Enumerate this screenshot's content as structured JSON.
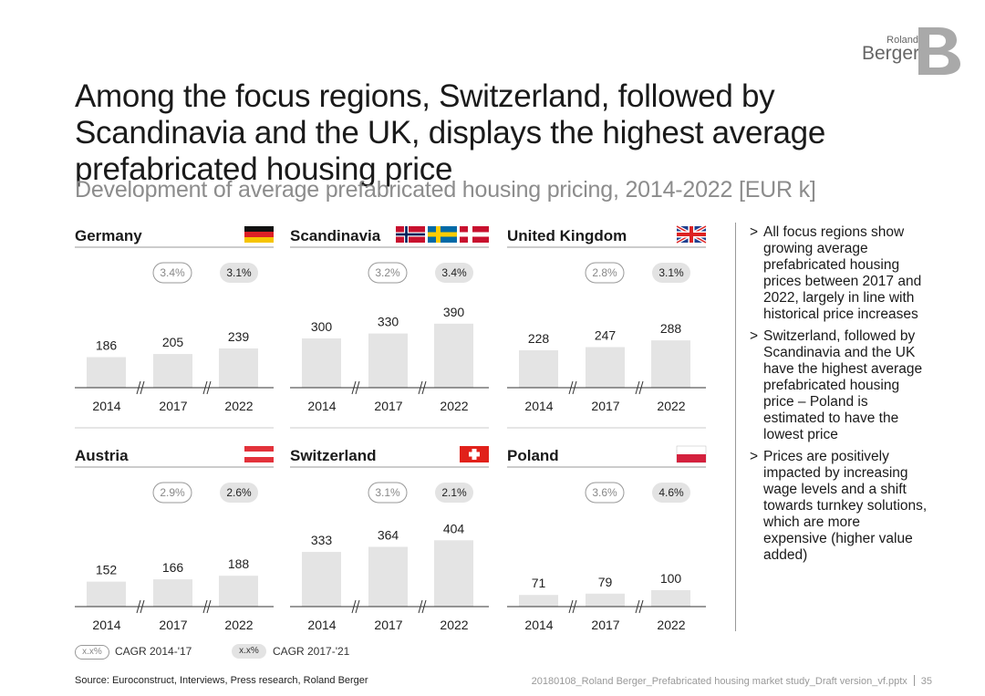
{
  "header": {
    "logo_line1": "Roland",
    "logo_line2": "Berger",
    "title": "Among the focus regions, Switzerland, followed by Scandinavia and the UK, displays the highest average prefabricated housing price",
    "subtitle": "Development of average prefabricated housing pricing, 2014-2022 [EUR k]"
  },
  "colors": {
    "bar": "#e4e4e4",
    "pill_fill": "#e3e3e3",
    "pill_border": "#999999",
    "flag_red": "#e3323b",
    "text": "#1a1a1a",
    "muted": "#8c8c8c"
  },
  "chart_data": [
    {
      "type": "bar",
      "title": "Germany",
      "flag": "germany-flag",
      "categories": [
        "2014",
        "2017",
        "2022"
      ],
      "values": [
        186,
        205,
        239
      ],
      "labels": [
        "186",
        "205",
        "239"
      ],
      "cagr_14_17": "3.4%",
      "cagr_17_21": "3.1%",
      "ylim": [
        0,
        500
      ]
    },
    {
      "type": "bar",
      "title": "Scandinavia",
      "flag": "scandinavia-flags",
      "categories": [
        "2014",
        "2017",
        "2022"
      ],
      "values": [
        300,
        330,
        390
      ],
      "labels": [
        "300",
        "330",
        "390"
      ],
      "cagr_14_17": "3.2%",
      "cagr_17_21": "3.4%",
      "ylim": [
        0,
        500
      ]
    },
    {
      "type": "bar",
      "title": "United Kingdom",
      "flag": "uk-flag",
      "categories": [
        "2014",
        "2017",
        "2022"
      ],
      "values": [
        228,
        247,
        288
      ],
      "labels": [
        "228",
        "247",
        "288"
      ],
      "cagr_14_17": "2.8%",
      "cagr_17_21": "3.1%",
      "ylim": [
        0,
        500
      ]
    },
    {
      "type": "bar",
      "title": "Austria",
      "flag": "austria-flag",
      "categories": [
        "2014",
        "2017",
        "2022"
      ],
      "values": [
        152,
        166,
        188
      ],
      "labels": [
        "152",
        "166",
        "188"
      ],
      "cagr_14_17": "2.9%",
      "cagr_17_21": "2.6%",
      "ylim": [
        0,
        500
      ]
    },
    {
      "type": "bar",
      "title": "Switzerland",
      "flag": "switzerland-flag",
      "categories": [
        "2014",
        "2017",
        "2022"
      ],
      "values": [
        333,
        364,
        404
      ],
      "labels": [
        "333",
        "364",
        "404"
      ],
      "cagr_14_17": "3.1%",
      "cagr_17_21": "2.1%",
      "ylim": [
        0,
        500
      ]
    },
    {
      "type": "bar",
      "title": "Poland",
      "flag": "poland-flag",
      "categories": [
        "2014",
        "2017",
        "2022"
      ],
      "values": [
        71,
        79,
        100
      ],
      "labels": [
        "71",
        "79",
        "100"
      ],
      "cagr_14_17": "3.6%",
      "cagr_17_21": "4.6%",
      "ylim": [
        0,
        500
      ]
    }
  ],
  "bullets": [
    "All focus regions show growing average prefabricated housing prices between 2017 and 2022, largely in line with historical price increases",
    "Switzerland, followed by Scandinavia and the UK have the highest average prefabricated housing price – Poland is estimated to have the lowest price",
    "Prices are positively impacted by increasing wage levels and a shift towards turnkey solutions, which are more expensive (higher value added)"
  ],
  "bullet_marker": ">",
  "legend": {
    "pill_text": "x.x%",
    "cagr1_label": "CAGR 2014-'17",
    "cagr2_label": "CAGR 2017-'21"
  },
  "footer": {
    "source": "Source: Euroconstruct, Interviews, Press research, Roland Berger",
    "file": "20180108_Roland Berger_Prefabricated housing market study_Draft version_vf.pptx",
    "page": "35"
  }
}
